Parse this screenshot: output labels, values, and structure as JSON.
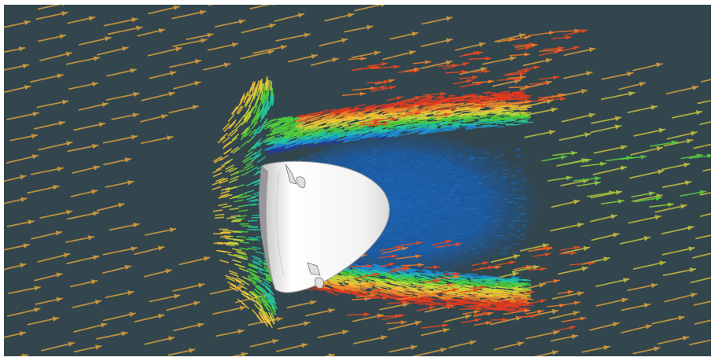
{
  "image": {
    "background_color": "#34464d",
    "capsule_color": "#f4f4f4",
    "wake_color": "#1e5fa8",
    "colormap": [
      "#1f3f9a",
      "#1e8fd6",
      "#22c7a0",
      "#4fd03c",
      "#c8d83a",
      "#f2c335",
      "#f08a2a",
      "#e6391f"
    ],
    "freestream_arrow_color": "#c9973e",
    "outer_arrow_color": "#b8b640"
  }
}
